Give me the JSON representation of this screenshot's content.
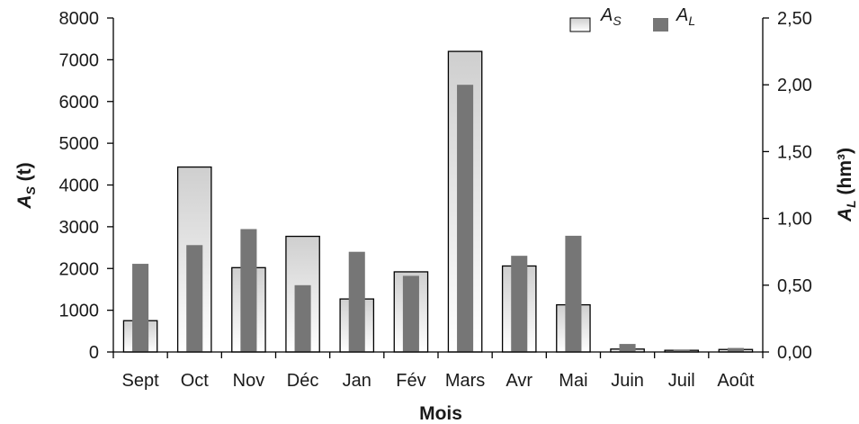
{
  "chart_data": {
    "type": "bar",
    "categories": [
      "Sept",
      "Oct",
      "Nov",
      "Déc",
      "Jan",
      "Fév",
      "Mars",
      "Avr",
      "Mai",
      "Juin",
      "Juil",
      "Août"
    ],
    "series": [
      {
        "name": "AS",
        "axis": "left",
        "values": [
          750,
          4430,
          2020,
          2770,
          1270,
          1920,
          7200,
          2060,
          1130,
          70,
          40,
          60
        ]
      },
      {
        "name": "AL",
        "axis": "right",
        "values": [
          0.66,
          0.8,
          0.92,
          0.5,
          0.75,
          0.57,
          2.0,
          0.72,
          0.87,
          0.06,
          0.015,
          0.03
        ]
      }
    ],
    "xlabel": "Mois",
    "ylabel_left": {
      "main": "A",
      "sub": "S",
      "rest": " (t)"
    },
    "ylabel_right": {
      "main": "A",
      "sub": "L",
      "rest": " (hm³)"
    },
    "ylim_left": [
      0,
      8000
    ],
    "ylim_right": [
      0,
      2.5
    ],
    "yticks_left": [
      "0",
      "1000",
      "2000",
      "3000",
      "4000",
      "5000",
      "6000",
      "7000",
      "8000"
    ],
    "yticks_right": [
      "0,00",
      "0,50",
      "1,00",
      "1,50",
      "2,00",
      "2,50"
    ],
    "grid": false,
    "legend_position": "top-right",
    "colors": {
      "AS_fill_top": "#cfcfcf",
      "AS_fill_bottom": "#ffffff",
      "AS_edge": "#000000",
      "AL_fill": "#767676"
    }
  }
}
